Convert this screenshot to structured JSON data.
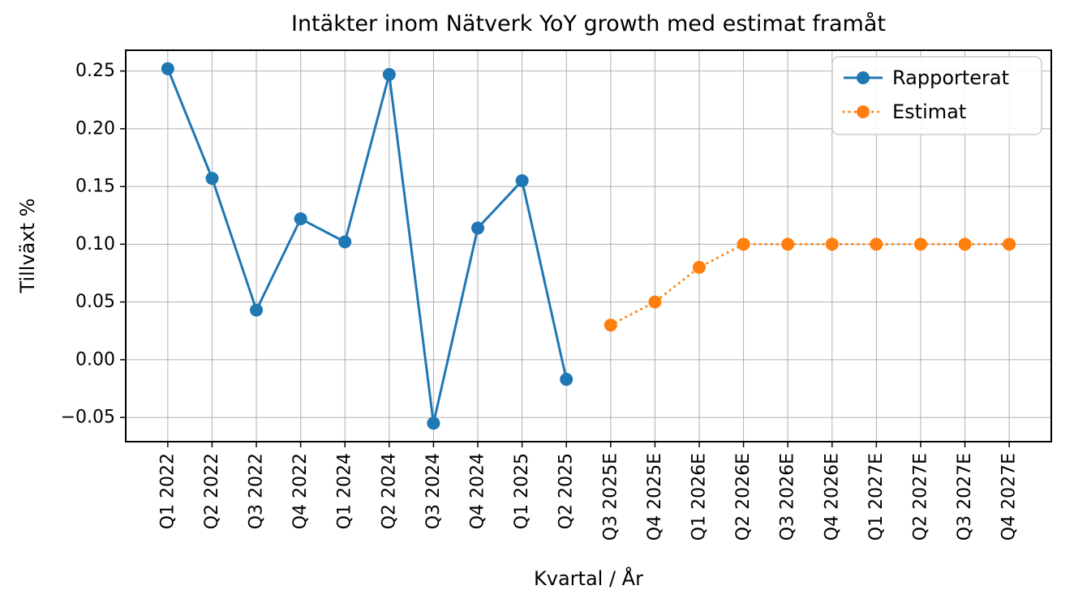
{
  "chart_data": {
    "type": "line",
    "title": "Intäkter inom Nätverk YoY growth med estimat framåt",
    "xlabel": "Kvartal / År",
    "ylabel": "Tillväxt %",
    "grid": true,
    "legend_position": "upper right",
    "categories": [
      "Q1 2022",
      "Q2 2022",
      "Q3 2022",
      "Q4 2022",
      "Q1 2024",
      "Q2 2024",
      "Q3 2024",
      "Q4 2024",
      "Q1 2025",
      "Q2 2025",
      "Q3 2025E",
      "Q4 2025E",
      "Q1 2026E",
      "Q2 2026E",
      "Q3 2026E",
      "Q4 2026E",
      "Q1 2027E",
      "Q2 2027E",
      "Q3 2027E",
      "Q4 2027E"
    ],
    "series": [
      {
        "name": "Rapporterat",
        "color": "#1f77b4",
        "line_style": "solid",
        "x_start": 0,
        "values": [
          0.252,
          0.157,
          0.043,
          0.122,
          0.102,
          0.247,
          -0.055,
          0.114,
          0.155,
          -0.017
        ]
      },
      {
        "name": "Estimat",
        "color": "#ff7f0e",
        "line_style": "dotted",
        "x_start": 10,
        "values": [
          0.03,
          0.05,
          0.08,
          0.1,
          0.1,
          0.1,
          0.1,
          0.1,
          0.1,
          0.1
        ]
      }
    ],
    "y_ticks": [
      -0.05,
      0.0,
      0.05,
      0.1,
      0.15,
      0.2,
      0.25
    ],
    "ylim": [
      -0.071,
      0.268
    ],
    "xlim": [
      -0.95,
      19.95
    ],
    "grid_color": "#b0b0b0",
    "spine_color": "#000000"
  }
}
